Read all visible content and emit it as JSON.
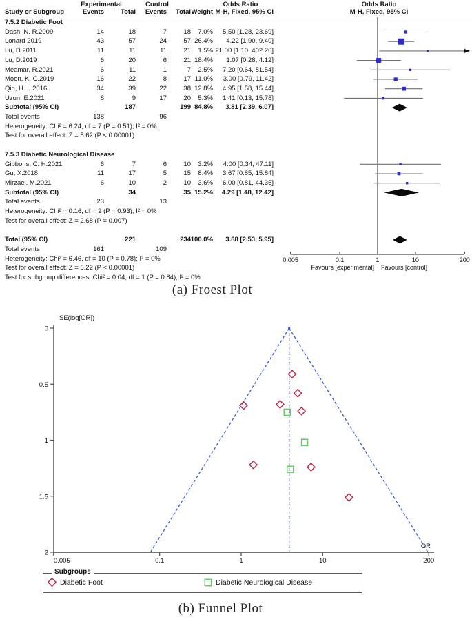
{
  "captions": {
    "a": "(a) Froest Plot",
    "b": "(b)  Funnel Plot"
  },
  "chart_data": [
    {
      "type": "table",
      "title": "Forest plot of odds ratios, M-H fixed effect",
      "columns": {
        "group_experimental": "Experimental",
        "group_control": "Control",
        "study": "Study or Subgroup",
        "events": "Events",
        "total": "Total",
        "weight": "Weight",
        "odds_ratio": "Odds Ratio",
        "mh_fixed": "M-H, Fixed, 95% CI"
      },
      "sections": [
        {
          "title": "7.5.2 Diabetic Foot",
          "studies": [
            {
              "study": "Dash, N. R.2009",
              "exp_events": 14,
              "exp_total": 18,
              "ctl_events": 7,
              "ctl_total": 18,
              "weight": "7.0%",
              "weight_pct": 7.0,
              "or": 5.5,
              "ci_low": 1.28,
              "ci_high": 23.69,
              "or_ci": "5.50 [1.28, 23.69]"
            },
            {
              "study": "Lonard 2019",
              "exp_events": 43,
              "exp_total": 57,
              "ctl_events": 24,
              "ctl_total": 57,
              "weight": "26.4%",
              "weight_pct": 26.4,
              "or": 4.22,
              "ci_low": 1.9,
              "ci_high": 9.4,
              "or_ci": "4.22 [1.90, 9.40]"
            },
            {
              "study": "Lu, D.2011",
              "exp_events": 11,
              "exp_total": 11,
              "ctl_events": 11,
              "ctl_total": 21,
              "weight": "1.5%",
              "weight_pct": 1.5,
              "or": 21.0,
              "ci_low": 1.1,
              "ci_high": 402.2,
              "or_ci": "21.00 [1.10, 402.20]"
            },
            {
              "study": "Lu, D.2019",
              "exp_events": 6,
              "exp_total": 20,
              "ctl_events": 6,
              "ctl_total": 21,
              "weight": "18.4%",
              "weight_pct": 18.4,
              "or": 1.07,
              "ci_low": 0.28,
              "ci_high": 4.12,
              "or_ci": "1.07 [0.28, 4.12]"
            },
            {
              "study": "Meamar, R.2021",
              "exp_events": 6,
              "exp_total": 11,
              "ctl_events": 1,
              "ctl_total": 7,
              "weight": "2.5%",
              "weight_pct": 2.5,
              "or": 7.2,
              "ci_low": 0.64,
              "ci_high": 81.54,
              "or_ci": "7.20 [0.64, 81.54]"
            },
            {
              "study": "Moon, K. C.2019",
              "exp_events": 16,
              "exp_total": 22,
              "ctl_events": 8,
              "ctl_total": 17,
              "weight": "11.0%",
              "weight_pct": 11.0,
              "or": 3.0,
              "ci_low": 0.79,
              "ci_high": 11.42,
              "or_ci": "3.00 [0.79, 11.42]"
            },
            {
              "study": "Qin, H. L.2016",
              "exp_events": 34,
              "exp_total": 39,
              "ctl_events": 22,
              "ctl_total": 38,
              "weight": "12.8%",
              "weight_pct": 12.8,
              "or": 4.95,
              "ci_low": 1.58,
              "ci_high": 15.44,
              "or_ci": "4.95 [1.58, 15.44]"
            },
            {
              "study": "Uzun, E.2021",
              "exp_events": 8,
              "exp_total": 9,
              "ctl_events": 17,
              "ctl_total": 20,
              "weight": "5.3%",
              "weight_pct": 5.3,
              "or": 1.41,
              "ci_low": 0.13,
              "ci_high": 15.78,
              "or_ci": "1.41 [0.13, 15.78]"
            }
          ],
          "subtotal": {
            "label": "Subtotal (95% CI)",
            "exp_total": 187,
            "ctl_total": 199,
            "weight": "84.8%",
            "or": 3.81,
            "ci_low": 2.39,
            "ci_high": 6.07,
            "or_ci": "3.81 [2.39, 6.07]"
          },
          "total_events": {
            "label": "Total events",
            "exp": 138,
            "ctl": 96
          },
          "heterogeneity": "Heterogeneity: Chi² = 6.24, df = 7 (P = 0.51); I² = 0%",
          "overall_effect": "Test for overall effect: Z = 5.62 (P < 0.00001)"
        },
        {
          "title": "7.5.3 Diabetic Neurological Disease",
          "studies": [
            {
              "study": "Gibbons, C. H.2021",
              "exp_events": 6,
              "exp_total": 7,
              "ctl_events": 6,
              "ctl_total": 10,
              "weight": "3.2%",
              "weight_pct": 3.2,
              "or": 4.0,
              "ci_low": 0.34,
              "ci_high": 47.11,
              "or_ci": "4.00 [0.34, 47.11]"
            },
            {
              "study": "Gu, X.2018",
              "exp_events": 11,
              "exp_total": 17,
              "ctl_events": 5,
              "ctl_total": 15,
              "weight": "8.4%",
              "weight_pct": 8.4,
              "or": 3.67,
              "ci_low": 0.85,
              "ci_high": 15.84,
              "or_ci": "3.67 [0.85, 15.84]"
            },
            {
              "study": "Mirzaei, M.2021",
              "exp_events": 6,
              "exp_total": 10,
              "ctl_events": 2,
              "ctl_total": 10,
              "weight": "3.6%",
              "weight_pct": 3.6,
              "or": 6.0,
              "ci_low": 0.81,
              "ci_high": 44.35,
              "or_ci": "6.00 [0.81, 44.35]"
            }
          ],
          "subtotal": {
            "label": "Subtotal (95% CI)",
            "exp_total": 34,
            "ctl_total": 35,
            "weight": "15.2%",
            "or": 4.29,
            "ci_low": 1.48,
            "ci_high": 12.42,
            "or_ci": "4.29 [1.48, 12.42]"
          },
          "total_events": {
            "label": "Total events",
            "exp": 23,
            "ctl": 13
          },
          "heterogeneity": "Heterogeneity: Chi² = 0.16, df = 2 (P = 0.93); I² = 0%",
          "overall_effect": "Test for overall effect: Z = 2.68 (P = 0.007)"
        }
      ],
      "total": {
        "label": "Total (95% CI)",
        "exp_total": 221,
        "ctl_total": 234,
        "weight": "100.0%",
        "or": 3.88,
        "ci_low": 2.53,
        "ci_high": 5.95,
        "or_ci": "3.88 [2.53, 5.95]"
      },
      "total_events": {
        "label": "Total events",
        "exp": 161,
        "ctl": 109
      },
      "heterogeneity": "Heterogeneity: Chi² = 6.46, df = 10 (P = 0.78); I² = 0%",
      "overall_effect": "Test for overall effect: Z = 6.22 (P < 0.00001)",
      "subgroup_diff": "Test for subgroup differences: Chi² = 0.04, df = 1 (P = 0.84), I² = 0%",
      "axis": {
        "scale": "log",
        "ticks": [
          "0.005",
          "0.1",
          "1",
          "10",
          "200"
        ],
        "favours_left": "Favours [experimental]",
        "favours_right": "Favours [control]"
      },
      "colors": {
        "marker_blue": "#2c2cc4",
        "ci_line": "#707070",
        "diamond": "#0a0a0a",
        "axis": "#4a4a4a"
      }
    },
    {
      "type": "scatter",
      "title": "Funnel plot",
      "ylabel": "SE(log[OR])",
      "xlabel": "OR",
      "x_scale": "log",
      "xlim": [
        0.005,
        200
      ],
      "ylim": [
        0,
        2
      ],
      "x_ticks": [
        "0.005",
        "0.1",
        "1",
        "10",
        "200"
      ],
      "y_ticks": [
        "0",
        "0.5",
        "1",
        "1.5",
        "2"
      ],
      "pooled_or": 3.88,
      "legend_title": "Subgroups",
      "series": [
        {
          "name": "Diabetic Foot",
          "marker": "diamond",
          "color": "#bb2946",
          "points": [
            {
              "or": 5.5,
              "se": 0.74
            },
            {
              "or": 4.22,
              "se": 0.41
            },
            {
              "or": 21.0,
              "se": 1.51
            },
            {
              "or": 1.07,
              "se": 0.69
            },
            {
              "or": 7.2,
              "se": 1.24
            },
            {
              "or": 3.0,
              "se": 0.68
            },
            {
              "or": 4.95,
              "se": 0.58
            },
            {
              "or": 1.41,
              "se": 1.22
            }
          ]
        },
        {
          "name": "Diabetic Neurological Disease",
          "marker": "square",
          "color": "#5ecf5e",
          "points": [
            {
              "or": 4.0,
              "se": 1.26
            },
            {
              "or": 3.67,
              "se": 0.75
            },
            {
              "or": 6.0,
              "se": 1.02
            }
          ]
        }
      ],
      "colors": {
        "funnel_dash": "#3c5bd6",
        "axis": "#4a4a4a"
      }
    }
  ]
}
